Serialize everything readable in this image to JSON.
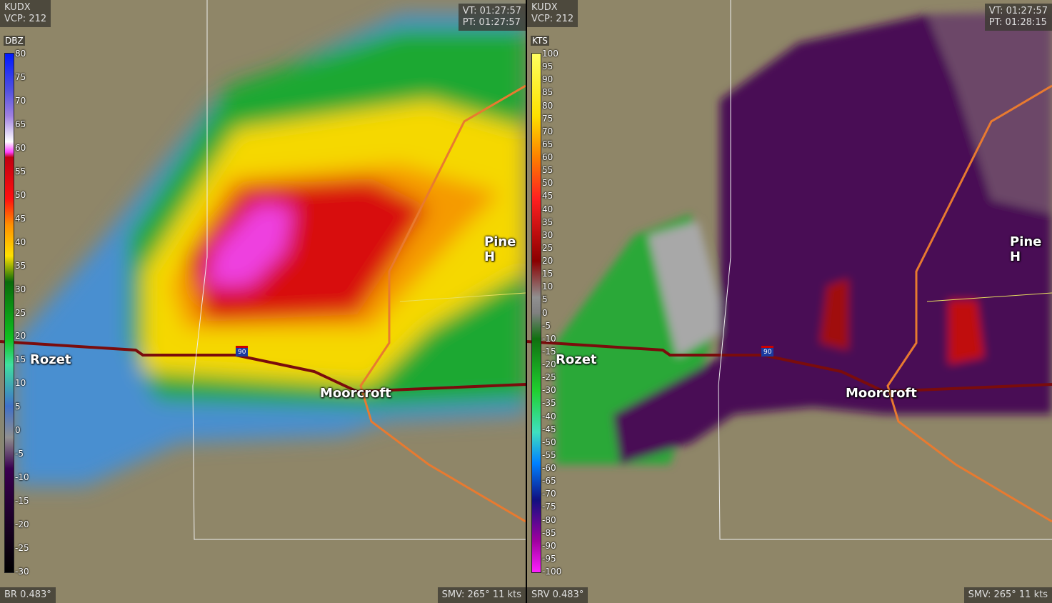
{
  "left": {
    "station": "KUDX",
    "vcp": "VCP: 212",
    "vt": "VT: 01:27:57",
    "pt": "PT: 01:27:57",
    "unit": "DBZ",
    "product": "BR 0.483°",
    "smv": "SMV: 265° 11 kts",
    "ticks": [
      "80",
      "75",
      "70",
      "65",
      "60",
      "55",
      "50",
      "45",
      "40",
      "35",
      "30",
      "25",
      "20",
      "15",
      "10",
      "5",
      "0",
      "-5",
      "-10",
      "-15",
      "-20",
      "-25",
      "-30"
    ]
  },
  "right": {
    "station": "KUDX",
    "vcp": "VCP: 212",
    "vt": "VT: 01:27:57",
    "pt": "PT: 01:28:15",
    "unit": "KTS",
    "product": "SRV 0.483°",
    "smv": "SMV: 265° 11 kts",
    "ticks": [
      "100",
      "95",
      "90",
      "85",
      "80",
      "75",
      "70",
      "65",
      "60",
      "55",
      "50",
      "45",
      "40",
      "35",
      "30",
      "25",
      "20",
      "15",
      "10",
      "5",
      "0",
      "-5",
      "-10",
      "-15",
      "-20",
      "-25",
      "-30",
      "-35",
      "-40",
      "-45",
      "-50",
      "-55",
      "-60",
      "-65",
      "-70",
      "-75",
      "-80",
      "-85",
      "-90",
      "-95",
      "-100"
    ]
  },
  "cities": {
    "rozet": "Rozet",
    "moorcroft": "Moorcroft",
    "pine": "Pine H"
  },
  "highway": "90"
}
